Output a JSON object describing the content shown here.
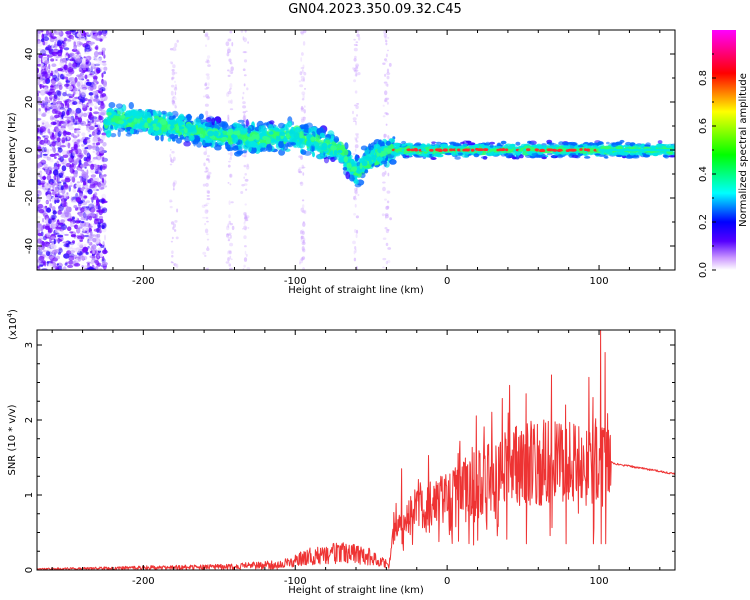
{
  "title": "GN04.2023.350.09.32.C45",
  "chart_data": [
    {
      "type": "heatmap",
      "xlabel": "Height of straight line (km)",
      "ylabel": "Frequency (Hz)",
      "xlim": [
        -270,
        150
      ],
      "ylim": [
        -50,
        50
      ],
      "xticks": [
        -200,
        -100,
        0,
        100
      ],
      "yticks": [
        -40,
        -20,
        0,
        20,
        40
      ],
      "colorbar": {
        "label": "Normalized spectral amplitude",
        "range": [
          0,
          1
        ],
        "ticks": [
          "0.0",
          "0.2",
          "0.4",
          "0.6",
          "0.8"
        ],
        "colors": [
          "#ffffff",
          "#5500ff",
          "#0000ff",
          "#00ffff",
          "#00ff00",
          "#ffff00",
          "#ff0000",
          "#ff00ff"
        ]
      },
      "ridge": [
        {
          "x": -225,
          "f": 13
        },
        {
          "x": -200,
          "f": 12
        },
        {
          "x": -175,
          "f": 9
        },
        {
          "x": -150,
          "f": 6
        },
        {
          "x": -125,
          "f": 5
        },
        {
          "x": -100,
          "f": 6
        },
        {
          "x": -85,
          "f": 3
        },
        {
          "x": -70,
          "f": 0
        },
        {
          "x": -60,
          "f": -10
        },
        {
          "x": -50,
          "f": -3
        },
        {
          "x": -35,
          "f": 0
        },
        {
          "x": 0,
          "f": 0
        },
        {
          "x": 100,
          "f": 0
        },
        {
          "x": 150,
          "f": 0
        }
      ]
    },
    {
      "type": "line",
      "xlabel": "Height of straight line (km)",
      "ylabel": "SNR (10 * v/v)",
      "yscale_label": "(x10",
      "yscale_exp": "4",
      "xlim": [
        -270,
        150
      ],
      "ylim": [
        0,
        3.2
      ],
      "xticks": [
        -200,
        -100,
        0,
        100
      ],
      "yticks": [
        0,
        1,
        2,
        3
      ],
      "color": "#ee3333",
      "envelope": [
        {
          "x": -270,
          "y": 0.02
        },
        {
          "x": -200,
          "y": 0.05
        },
        {
          "x": -150,
          "y": 0.07
        },
        {
          "x": -110,
          "y": 0.12
        },
        {
          "x": -90,
          "y": 0.3
        },
        {
          "x": -70,
          "y": 0.38
        },
        {
          "x": -50,
          "y": 0.3
        },
        {
          "x": -38,
          "y": 0.1
        },
        {
          "x": -35,
          "y": 0.55
        },
        {
          "x": -20,
          "y": 0.85
        },
        {
          "x": 0,
          "y": 1.0
        },
        {
          "x": 20,
          "y": 1.25
        },
        {
          "x": 40,
          "y": 1.45
        },
        {
          "x": 60,
          "y": 1.55
        },
        {
          "x": 80,
          "y": 1.55
        },
        {
          "x": 95,
          "y": 1.55
        },
        {
          "x": 103,
          "y": 1.5
        },
        {
          "x": 110,
          "y": 1.42
        },
        {
          "x": 150,
          "y": 1.28
        }
      ],
      "peaks": [
        {
          "x": -30,
          "y": 1.35
        },
        {
          "x": 52,
          "y": 2.35
        },
        {
          "x": 78,
          "y": 2.2
        },
        {
          "x": 96,
          "y": 2.3
        },
        {
          "x": 101,
          "y": 3.2
        },
        {
          "x": 104,
          "y": 2.9
        }
      ]
    }
  ]
}
